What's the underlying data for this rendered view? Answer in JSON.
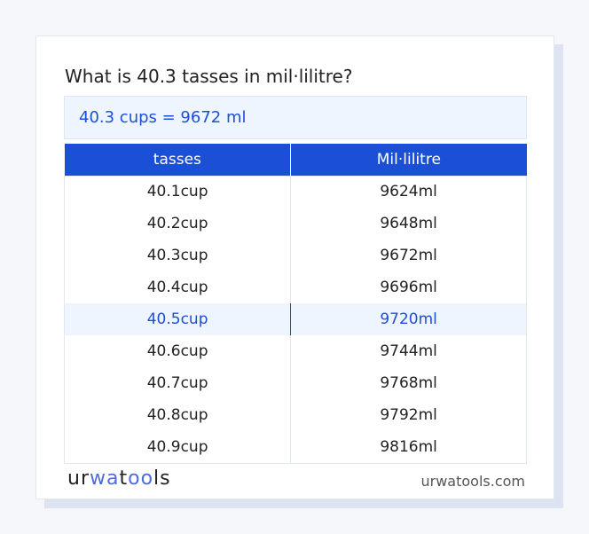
{
  "title": "What is 40.3 tasses in mil·lilitre?",
  "result": "40.3 cups = 9672 ml",
  "table": {
    "headers": [
      "tasses",
      "Mil·lilitre"
    ],
    "rows": [
      [
        "40.1cup",
        "9624ml"
      ],
      [
        "40.2cup",
        "9648ml"
      ],
      [
        "40.3cup",
        "9672ml"
      ],
      [
        "40.4cup",
        "9696ml"
      ],
      [
        "40.5cup",
        "9720ml"
      ],
      [
        "40.6cup",
        "9744ml"
      ],
      [
        "40.7cup",
        "9768ml"
      ],
      [
        "40.8cup",
        "9792ml"
      ],
      [
        "40.9cup",
        "9816ml"
      ]
    ],
    "highlighted_row": 4
  },
  "footer": {
    "logo": "urwatools",
    "site": "urwatools.com"
  },
  "colors": {
    "accent": "#1a4fd6",
    "highlight_bg": "#eef5ff"
  }
}
